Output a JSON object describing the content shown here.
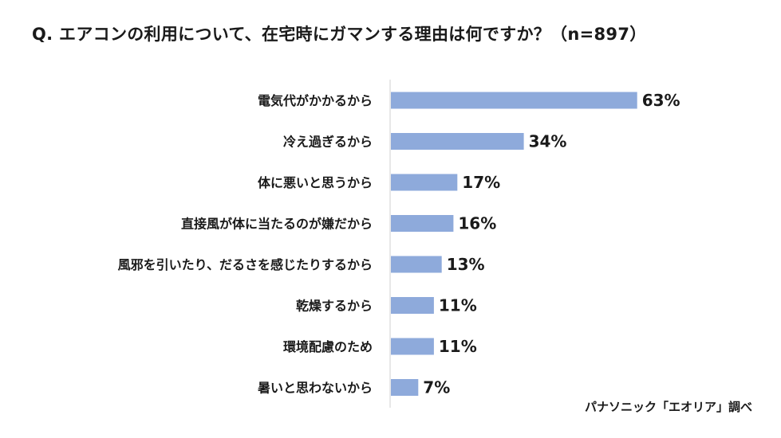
{
  "chart_data": {
    "type": "bar",
    "orientation": "horizontal",
    "title": "Q. エアコンの利用について、在宅時にガマンする理由は何ですか？（n=897）",
    "categories": [
      "電気代がかかるから",
      "冷え過ぎるから",
      "体に悪いと思うから",
      "直接風が体に当たるのが嫌だから",
      "風邪を引いたり、だるさを感じたりするから",
      "乾燥するから",
      "環境配慮のため",
      "暑いと思わないから"
    ],
    "values": [
      63,
      34,
      17,
      16,
      13,
      11,
      11,
      7
    ],
    "value_labels": [
      "63%",
      "34%",
      "17%",
      "16%",
      "13%",
      "11%",
      "11%",
      "7%"
    ],
    "unit": "%",
    "xlim": [
      0,
      100
    ],
    "xlabel": "",
    "ylabel": "",
    "grid": false,
    "legend": "none",
    "bar_color": "#8eaadb",
    "axis_color": "#d0d0d0",
    "source": "パナソニック「エオリア」調べ"
  }
}
